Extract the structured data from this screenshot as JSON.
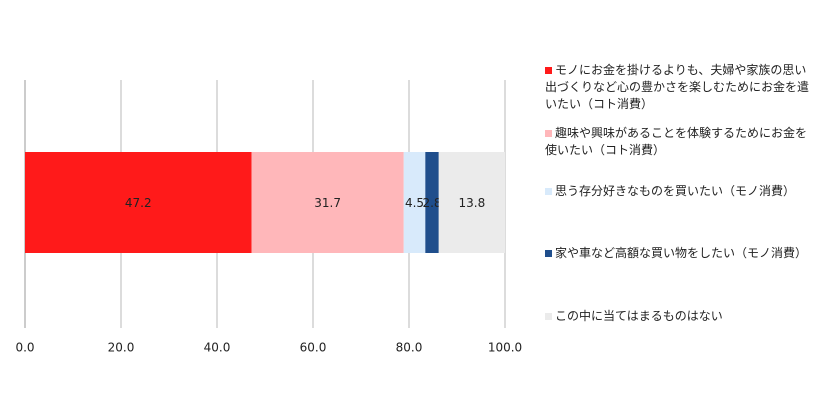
{
  "chart_data": {
    "type": "stacked_barh",
    "categories": [
      null
    ],
    "series": [
      {
        "name": "モノにお金を掛けるよりも、夫婦や家族の思い出づくりなど心の豊かさを楽しむためにお金を遣いたい（コト消費）",
        "color": "#ff1a1a",
        "values": [
          47.2
        ]
      },
      {
        "name": "趣味や興味があることを体験するためにお金を使いたい（コト消費）",
        "color": "#ffb7ba",
        "values": [
          31.7
        ]
      },
      {
        "name": "思う存分好きなものを買いたい（モノ消費）",
        "color": "#d8eafb",
        "values": [
          4.5
        ]
      },
      {
        "name": "家や車など高額な買い物をしたい（モノ消費）",
        "color": "#1f4e8c",
        "values": [
          2.8
        ]
      },
      {
        "name": "この中に当てはまるものはない",
        "color": "#ebebeb",
        "values": [
          13.8
        ]
      }
    ],
    "xlim": [
      0,
      100
    ],
    "xticks": [
      {
        "value": 0,
        "label": "0.0"
      },
      {
        "value": 20,
        "label": "20.0"
      },
      {
        "value": 40,
        "label": "40.0"
      },
      {
        "value": 60,
        "label": "60.0"
      },
      {
        "value": 80,
        "label": "80.0"
      },
      {
        "value": 100,
        "label": "100.0"
      }
    ],
    "grid": true,
    "legend": "right"
  }
}
